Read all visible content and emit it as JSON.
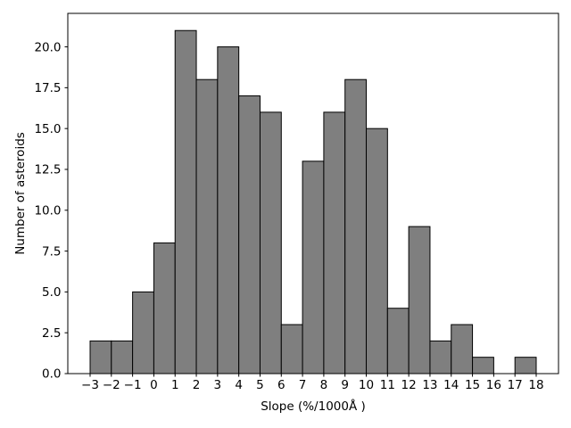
{
  "figure": {
    "background": "#ffffff"
  },
  "chart_data": {
    "type": "bar",
    "subtype": "histogram",
    "title": "",
    "xlabel": "Slope (%/1000Å )",
    "ylabel": "Number of asteroids",
    "bin_width": 1,
    "bin_starts": [
      -3,
      -2,
      -1,
      0,
      1,
      2,
      3,
      4,
      5,
      6,
      7,
      8,
      9,
      10,
      11,
      12,
      13,
      14,
      15,
      16,
      17
    ],
    "values": [
      2,
      2,
      5,
      8,
      21,
      18,
      20,
      17,
      16,
      3,
      13,
      16,
      18,
      15,
      4,
      9,
      2,
      3,
      1,
      0,
      1
    ],
    "x_tick_values": [
      -3,
      -2,
      -1,
      0,
      1,
      2,
      3,
      4,
      5,
      6,
      7,
      8,
      9,
      10,
      11,
      12,
      13,
      14,
      15,
      16,
      17,
      18
    ],
    "x_tick_labels": [
      "−3",
      "−2",
      "−1",
      "0",
      "1",
      "2",
      "3",
      "4",
      "5",
      "6",
      "7",
      "8",
      "9",
      "10",
      "11",
      "12",
      "13",
      "14",
      "15",
      "16",
      "17",
      "18"
    ],
    "y_tick_values": [
      0,
      2.5,
      5,
      7.5,
      10,
      12.5,
      15,
      17.5,
      20
    ],
    "y_tick_labels": [
      "0.0",
      "2.5",
      "5.0",
      "7.5",
      "10.0",
      "12.5",
      "15.0",
      "17.5",
      "20.0"
    ],
    "xlim": [
      -4.05,
      19.05
    ],
    "ylim": [
      0,
      22.05
    ],
    "grid": false,
    "legend": null,
    "bar_fill": "#7f7f7f",
    "bar_edge": "#000000",
    "spine_color": "#000000",
    "tick_color": "#000000",
    "text_color": "#000000"
  }
}
